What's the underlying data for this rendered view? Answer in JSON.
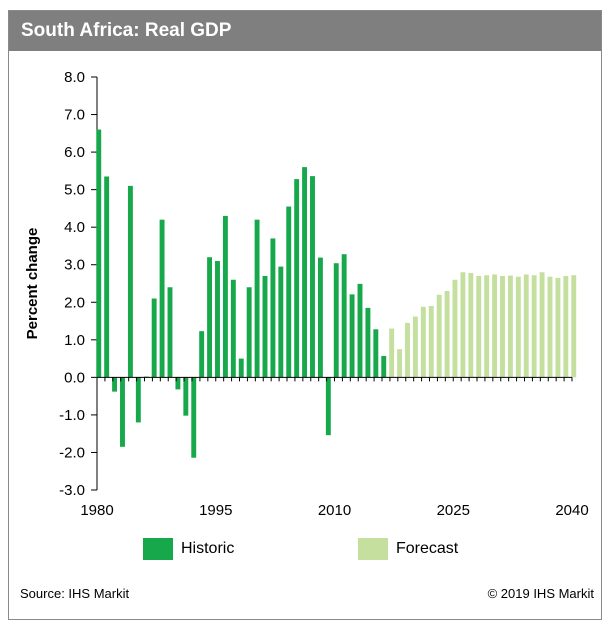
{
  "title": "South Africa: Real GDP",
  "source": "Source: IHS Markit",
  "copyright": "© 2019 IHS Markit",
  "colors": {
    "historic": "#16a84a",
    "forecast": "#c5df9f",
    "title_bg": "#7f7f7f"
  },
  "chart_data": {
    "type": "bar",
    "title": "South Africa: Real GDP",
    "ylabel": "Percent change",
    "xlabel": "",
    "ylim": [
      -3.0,
      8.0
    ],
    "yticks": [
      "8.0",
      "7.0",
      "6.0",
      "5.0",
      "4.0",
      "3.0",
      "2.0",
      "1.0",
      "0.0",
      "-1.0",
      "-2.0",
      "-3.0"
    ],
    "xticks": [
      "1980",
      "1995",
      "2010",
      "2025",
      "2040"
    ],
    "x": [
      1980,
      1981,
      1982,
      1983,
      1984,
      1985,
      1986,
      1987,
      1988,
      1989,
      1990,
      1991,
      1992,
      1993,
      1994,
      1995,
      1996,
      1997,
      1998,
      1999,
      2000,
      2001,
      2002,
      2003,
      2004,
      2005,
      2006,
      2007,
      2008,
      2009,
      2010,
      2011,
      2012,
      2013,
      2014,
      2015,
      2016,
      2017,
      2018,
      2019,
      2020,
      2021,
      2022,
      2023,
      2024,
      2025,
      2026,
      2027,
      2028,
      2029,
      2030,
      2031,
      2032,
      2033,
      2034,
      2035,
      2036,
      2037,
      2038,
      2039,
      2040
    ],
    "grid": false,
    "legend_position": "bottom",
    "series": [
      {
        "name": "Historic",
        "color": "#16a84a",
        "values": [
          6.6,
          5.35,
          -0.38,
          -1.85,
          5.1,
          -1.2,
          0.02,
          2.1,
          4.2,
          2.4,
          -0.32,
          -1.02,
          -2.14,
          1.23,
          3.2,
          3.1,
          4.3,
          2.6,
          0.5,
          2.4,
          4.2,
          2.7,
          3.7,
          2.95,
          4.55,
          5.28,
          5.6,
          5.36,
          3.19,
          -1.54,
          3.04,
          3.28,
          2.21,
          2.49,
          1.85,
          1.28,
          0.57,
          null,
          null,
          null,
          null,
          null,
          null,
          null,
          null,
          null,
          null,
          null,
          null,
          null,
          null,
          null,
          null,
          null,
          null,
          null,
          null,
          null,
          null,
          null,
          null
        ]
      },
      {
        "name": "Forecast",
        "color": "#c5df9f",
        "values": [
          null,
          null,
          null,
          null,
          null,
          null,
          null,
          null,
          null,
          null,
          null,
          null,
          null,
          null,
          null,
          null,
          null,
          null,
          null,
          null,
          null,
          null,
          null,
          null,
          null,
          null,
          null,
          null,
          null,
          null,
          null,
          null,
          null,
          null,
          null,
          null,
          null,
          1.3,
          0.75,
          1.45,
          1.62,
          1.88,
          1.9,
          2.2,
          2.3,
          2.6,
          2.8,
          2.78,
          2.7,
          2.72,
          2.74,
          2.7,
          2.71,
          2.68,
          2.74,
          2.72,
          2.8,
          2.68,
          2.65,
          2.7,
          2.72
        ]
      }
    ]
  }
}
